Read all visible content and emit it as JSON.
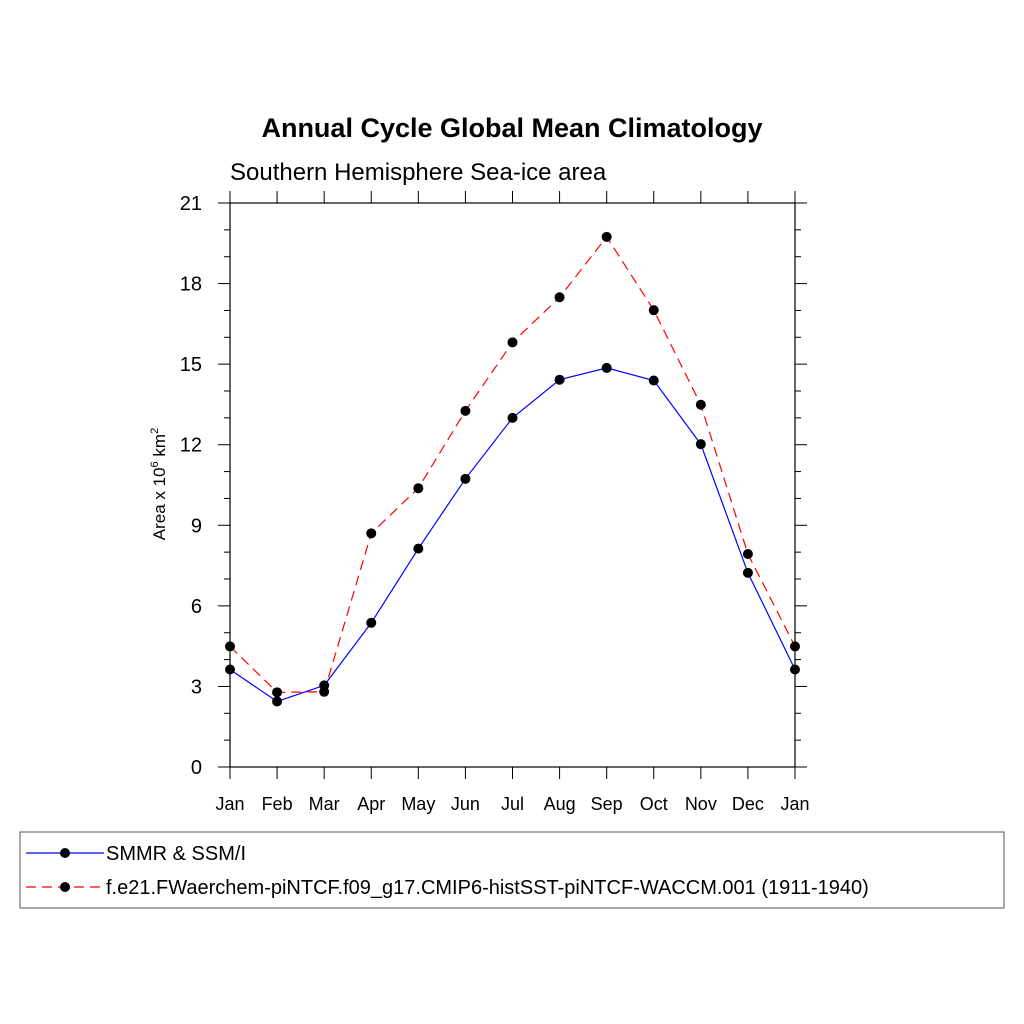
{
  "chart_data": {
    "type": "line",
    "title": "Annual Cycle Global Mean Climatology",
    "subtitle": "Southern Hemisphere Sea-ice area",
    "ylabel": {
      "base": "Area x 10",
      "exp1": "6",
      "mid": " km",
      "exp2": "2"
    },
    "ylim": [
      0,
      21
    ],
    "yticks": [
      0,
      3,
      6,
      9,
      12,
      15,
      18,
      21
    ],
    "categories": [
      "Jan",
      "Feb",
      "Mar",
      "Apr",
      "May",
      "Jun",
      "Jul",
      "Aug",
      "Sep",
      "Oct",
      "Nov",
      "Dec",
      "Jan"
    ],
    "series": [
      {
        "name": "SMMR & SSM/I",
        "color": "#0000ff",
        "dash": "solid",
        "values": [
          3.63,
          2.44,
          3.04,
          5.37,
          8.13,
          10.73,
          13.0,
          14.42,
          14.86,
          14.39,
          12.02,
          7.23,
          3.63
        ]
      },
      {
        "name": "f.e21.FWaerchem-piNTCF.f09_g17.CMIP6-histSST-piNTCF-WACCM.001 (1911-1940)",
        "color": "#ff0000",
        "dash": "dashed",
        "values": [
          4.49,
          2.78,
          2.8,
          8.7,
          10.38,
          13.26,
          15.81,
          17.49,
          19.74,
          17.01,
          13.49,
          7.93,
          4.49
        ]
      }
    ],
    "marker_color": "#000000"
  }
}
